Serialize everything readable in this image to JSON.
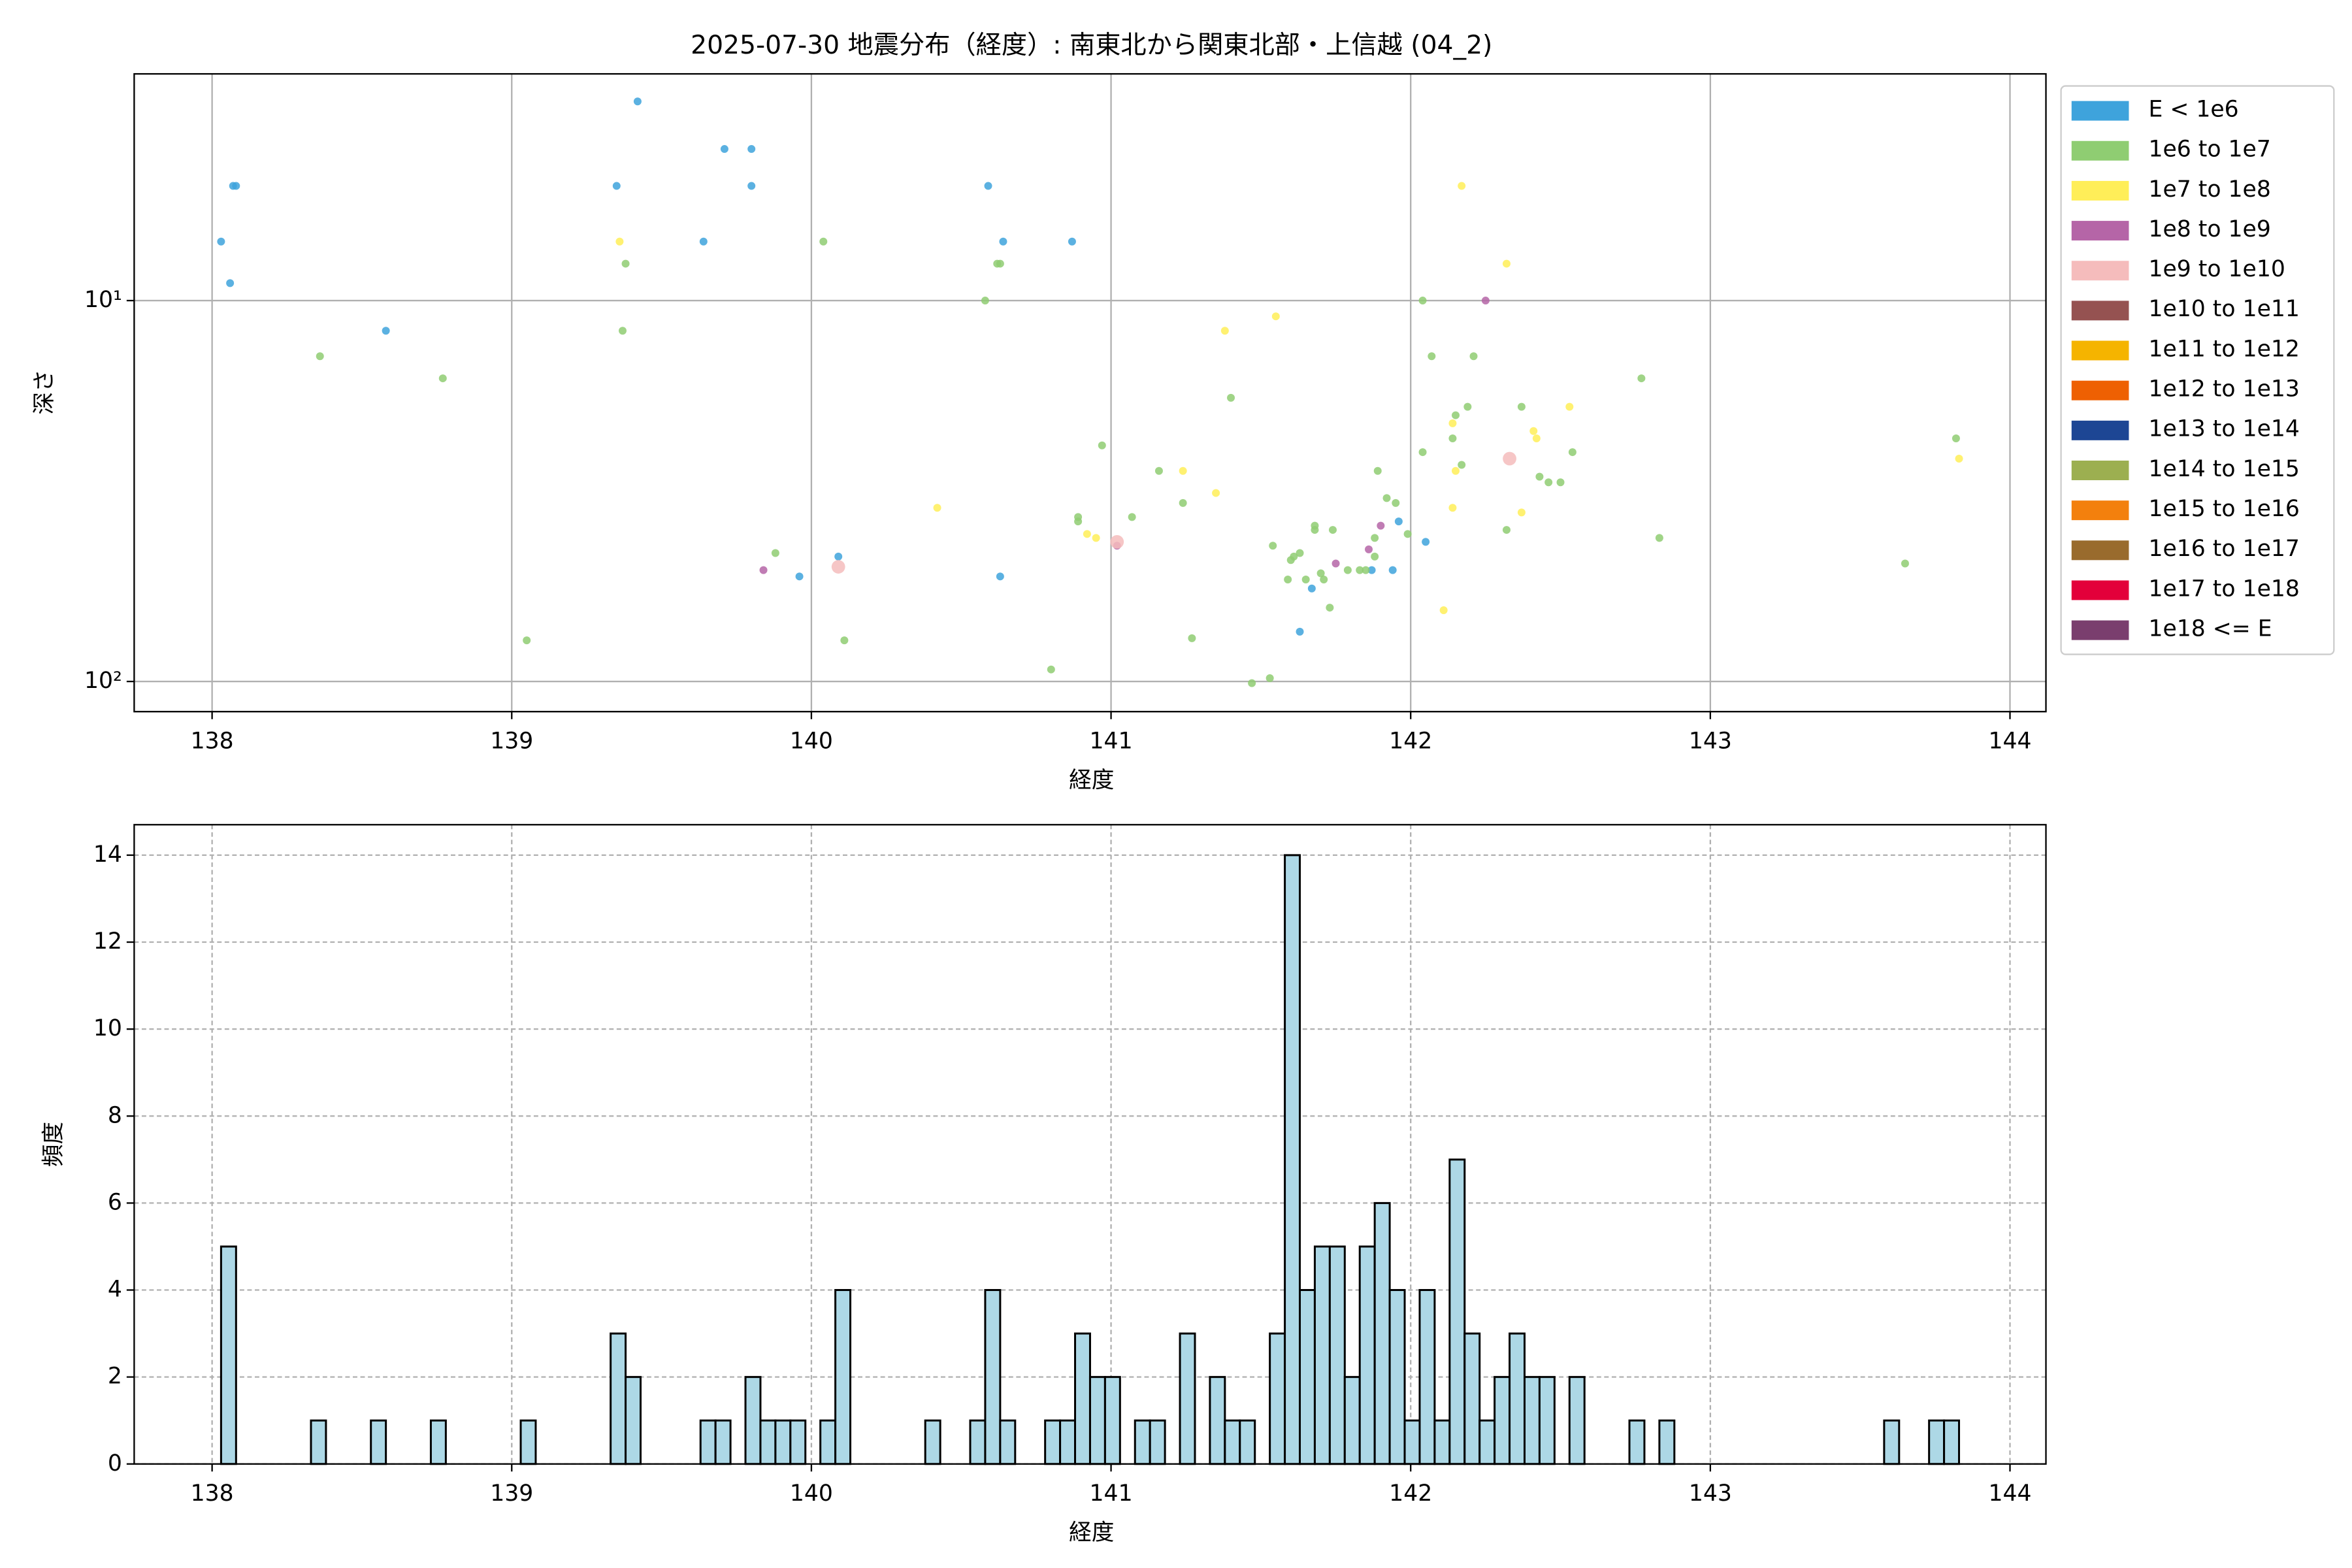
{
  "chart_data": [
    {
      "type": "scatter",
      "title": "2025-07-30 地震分布（経度）: 南東北から関東北部・上信越 (04_2)",
      "xlabel": "経度",
      "ylabel": "深さ",
      "xlim": [
        137.74,
        144.12
      ],
      "xticks": [
        138,
        139,
        140,
        141,
        142,
        143,
        144
      ],
      "ylim": [
        2.54,
        120
      ],
      "yscale": "log",
      "y_inverted": true,
      "yticks": [
        {
          "value": 10,
          "label": "10¹"
        },
        {
          "value": 100,
          "label": "10²"
        }
      ],
      "grid": true,
      "grid_linestyle": "solid",
      "legend": "outside right",
      "series": [
        {
          "name": "E < 1e6",
          "color": "#3ea3dc",
          "x": [
            138.03,
            138.06,
            138.07,
            138.08,
            138.58,
            139.35,
            139.42,
            139.64,
            139.71,
            139.8,
            139.8,
            140.09,
            139.96,
            140.59,
            140.64,
            140.63,
            140.87,
            141.63,
            141.67,
            141.87,
            141.94,
            141.96,
            142.05
          ],
          "y": [
            7,
            9,
            5,
            5,
            12,
            5,
            3,
            7,
            4,
            4,
            5,
            47,
            53,
            5,
            7,
            53,
            7,
            74,
            57,
            51,
            51,
            38,
            43
          ]
        },
        {
          "name": "1e6 to 1e7",
          "color": "#8fcd72",
          "x": [
            138.36,
            138.77,
            139.05,
            139.37,
            139.38,
            139.88,
            140.04,
            140.11,
            140.58,
            140.62,
            140.63,
            140.8,
            140.89,
            140.89,
            140.97,
            141.07,
            141.16,
            141.24,
            141.27,
            141.4,
            141.47,
            141.53,
            141.54,
            141.59,
            141.6,
            141.61,
            141.63,
            141.65,
            141.68,
            141.68,
            141.7,
            141.71,
            141.73,
            141.74,
            141.79,
            141.83,
            141.85,
            141.88,
            141.88,
            141.89,
            141.92,
            141.95,
            141.99,
            142.04,
            142.04,
            142.07,
            142.14,
            142.15,
            142.17,
            142.19,
            142.21,
            142.32,
            142.37,
            142.43,
            142.46,
            142.5,
            142.54,
            142.77,
            142.83,
            143.65,
            143.82
          ],
          "y": [
            14,
            16,
            78,
            12,
            8,
            46,
            7,
            78,
            10,
            8,
            8,
            93,
            37,
            38,
            24,
            37,
            28,
            34,
            77,
            18,
            101,
            98,
            44,
            54,
            48,
            47,
            46,
            54,
            40,
            39,
            52,
            54,
            64,
            40,
            51,
            51,
            51,
            47,
            42,
            28,
            33,
            34,
            41,
            10,
            25,
            14,
            23,
            20,
            27,
            19,
            14,
            40,
            19,
            29,
            30,
            30,
            25,
            16,
            42,
            49,
            23
          ]
        },
        {
          "name": "1e7 to 1e8",
          "color": "#ffee58",
          "x": [
            139.36,
            140.42,
            140.92,
            140.95,
            141.24,
            141.35,
            141.38,
            141.55,
            142.11,
            142.14,
            142.14,
            142.15,
            142.17,
            142.32,
            142.37,
            142.41,
            142.42,
            142.53,
            143.83
          ],
          "y": [
            7,
            35,
            41,
            42,
            28,
            32,
            12,
            11,
            65,
            35,
            21,
            28,
            5,
            8,
            36,
            22,
            23,
            19,
            26
          ]
        },
        {
          "name": "1e8 to 1e9",
          "color": "#b565a7",
          "x": [
            139.84,
            141.02,
            141.75,
            141.86,
            141.9,
            142.25
          ],
          "y": [
            51,
            44,
            49,
            45,
            39,
            10
          ]
        },
        {
          "name": "1e9 to 1e10",
          "color": "#f5bcbc",
          "x": [
            140.09,
            141.02,
            142.33
          ],
          "y": [
            50,
            43,
            26
          ]
        },
        {
          "name": "1e10 to 1e11",
          "color": "#955251",
          "x": [],
          "y": []
        },
        {
          "name": "1e11 to 1e12",
          "color": "#f5b400",
          "x": [],
          "y": []
        },
        {
          "name": "1e12 to 1e13",
          "color": "#ee6002",
          "x": [],
          "y": []
        },
        {
          "name": "1e13 to 1e14",
          "color": "#1d4694",
          "x": [],
          "y": []
        },
        {
          "name": "1e14 to 1e15",
          "color": "#9caf50",
          "x": [],
          "y": []
        },
        {
          "name": "1e15 to 1e16",
          "color": "#f3800d",
          "x": [],
          "y": []
        },
        {
          "name": "1e16 to 1e17",
          "color": "#996b2d",
          "x": [],
          "y": []
        },
        {
          "name": "1e17 to 1e18",
          "color": "#e3003a",
          "x": [],
          "y": []
        },
        {
          "name": "1e18 <= E",
          "color": "#7a3e6e",
          "x": [],
          "y": []
        }
      ]
    },
    {
      "type": "histogram",
      "xlabel": "経度",
      "ylabel": "頻度",
      "color": "#add8e6",
      "edgecolor": "#000000",
      "xlim": [
        137.74,
        144.12
      ],
      "xticks": [
        138,
        139,
        140,
        141,
        142,
        143,
        144
      ],
      "ylim": [
        0,
        14.7
      ],
      "yticks": [
        0,
        2,
        4,
        6,
        8,
        10,
        12,
        14
      ],
      "grid": true,
      "grid_linestyle": "dashed",
      "bins": [
        138.03,
        138.08,
        138.13,
        138.18,
        138.23,
        138.28,
        138.33,
        138.38,
        138.43,
        138.48,
        138.53,
        138.58,
        138.63,
        138.68,
        138.73,
        138.78,
        138.83,
        138.88,
        138.93,
        138.98,
        139.03,
        139.08,
        139.13,
        139.18,
        139.23,
        139.28,
        139.33,
        139.38,
        139.43,
        139.48,
        139.53,
        139.58,
        139.63,
        139.68,
        139.73,
        139.78,
        139.83,
        139.88,
        139.93,
        139.98,
        140.03,
        140.08,
        140.13,
        140.18,
        140.23,
        140.28,
        140.33,
        140.38,
        140.43,
        140.48,
        140.53,
        140.58,
        140.63,
        140.68,
        140.73,
        140.78,
        140.83,
        140.88,
        140.93,
        140.98,
        141.03,
        141.08,
        141.13,
        141.18,
        141.23,
        141.28,
        141.33,
        141.38,
        141.43,
        141.48,
        141.53,
        141.58,
        141.63,
        141.68,
        141.73,
        141.78,
        141.83,
        141.88,
        141.93,
        141.98,
        142.03,
        142.08,
        142.13,
        142.18,
        142.23,
        142.28,
        142.33,
        142.38,
        142.43,
        142.48,
        142.53,
        142.58,
        142.63,
        142.68,
        142.73,
        142.78,
        142.83,
        142.88,
        142.93,
        142.98,
        143.03,
        143.08,
        143.13,
        143.18,
        143.23,
        143.28,
        143.33,
        143.38,
        143.43,
        143.48,
        143.53,
        143.58,
        143.63,
        143.68,
        143.73,
        143.78,
        143.83
      ],
      "values": [
        5,
        0,
        0,
        0,
        0,
        0,
        1,
        0,
        0,
        0,
        1,
        0,
        0,
        0,
        1,
        0,
        0,
        0,
        0,
        0,
        1,
        0,
        0,
        0,
        0,
        0,
        3,
        2,
        0,
        0,
        0,
        0,
        1,
        1,
        0,
        2,
        1,
        1,
        1,
        0,
        1,
        4,
        0,
        0,
        0,
        0,
        0,
        1,
        0,
        0,
        1,
        4,
        1,
        0,
        0,
        1,
        1,
        3,
        2,
        2,
        0,
        1,
        1,
        0,
        3,
        0,
        2,
        1,
        1,
        0,
        3,
        14,
        4,
        5,
        5,
        2,
        5,
        6,
        4,
        1,
        4,
        1,
        7,
        3,
        1,
        2,
        3,
        2,
        2,
        0,
        2,
        0,
        0,
        0,
        1,
        0,
        1,
        0,
        0,
        0,
        0,
        0,
        0,
        0,
        0,
        0,
        0,
        0,
        0,
        0,
        0,
        1,
        0,
        0,
        1,
        1
      ]
    }
  ]
}
